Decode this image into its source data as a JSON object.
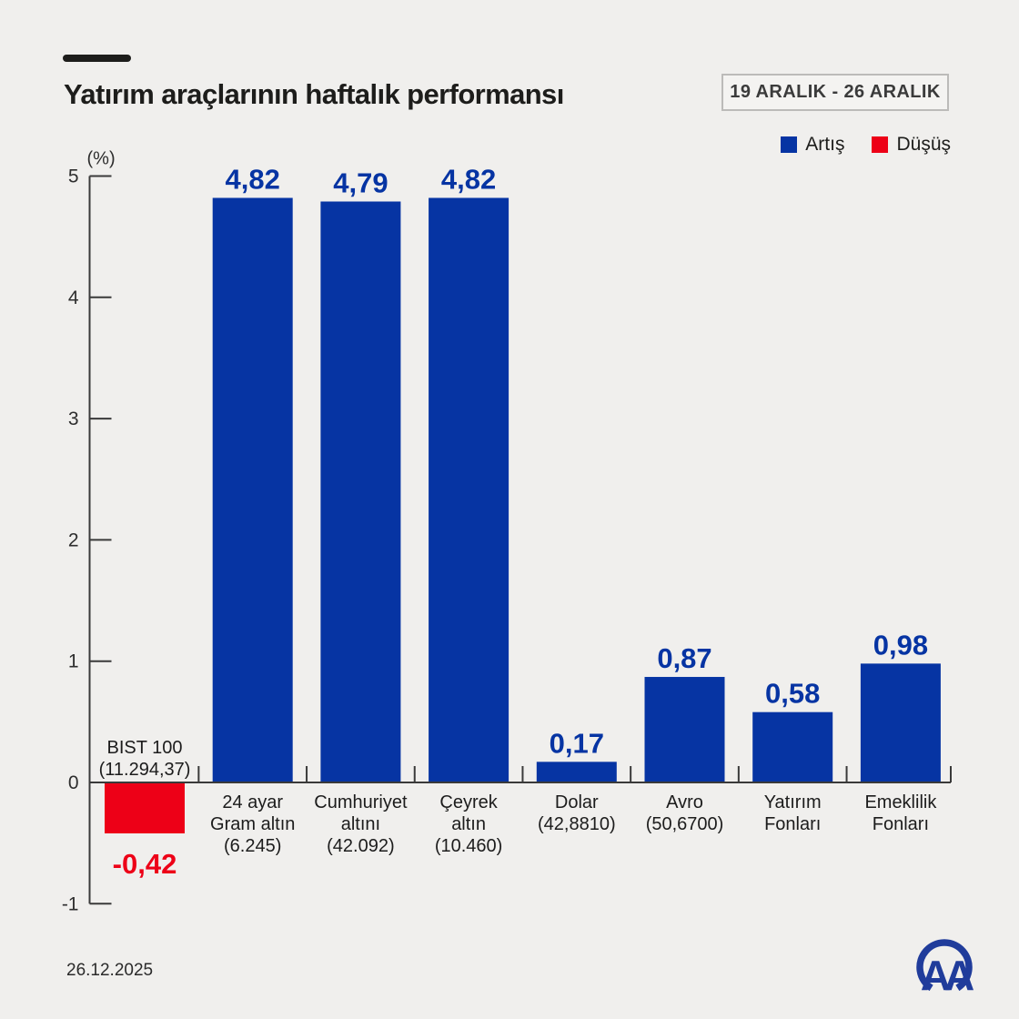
{
  "header": {
    "title": "Yatırım araçlarının haftalık performansı",
    "date_range": "19 ARALIK - 26 ARALIK"
  },
  "legend": {
    "increase": "Artış",
    "decrease": "Düşüş"
  },
  "footer": {
    "date": "26.12.2025",
    "logo_text": "AA"
  },
  "colors": {
    "increase": "#0634A3",
    "decrease": "#ED0017",
    "background": "#F0EFED",
    "axis": "#3A3A3A",
    "text_dark": "#1D1D1B",
    "tick_text": "#2E2E2E",
    "logo_blue": "#203C9B"
  },
  "chart_data": {
    "type": "bar",
    "title": "Yatırım araçlarının haftalık performansı",
    "unit_label": "(%)",
    "ylabel": "(%)",
    "ylim": [
      -1,
      5
    ],
    "y_ticks": [
      5,
      4,
      3,
      2,
      1,
      0,
      -1
    ],
    "grid": false,
    "legend_position": "top-right",
    "categories": [
      {
        "id": "bist-100",
        "label_lines": [
          "BIST 100",
          "(11.294,37)"
        ],
        "value": -0.42,
        "value_label": "-0,42",
        "direction": "decrease"
      },
      {
        "id": "gram-altin",
        "label_lines": [
          "24 ayar",
          "Gram altın",
          "(6.245)"
        ],
        "value": 4.82,
        "value_label": "4,82",
        "direction": "increase"
      },
      {
        "id": "cumhuriyet-altini",
        "label_lines": [
          "Cumhuriyet",
          "altını",
          "(42.092)"
        ],
        "value": 4.79,
        "value_label": "4,79",
        "direction": "increase"
      },
      {
        "id": "ceyrek-altin",
        "label_lines": [
          "Çeyrek",
          "altın",
          "(10.460)"
        ],
        "value": 4.82,
        "value_label": "4,82",
        "direction": "increase"
      },
      {
        "id": "dolar",
        "label_lines": [
          "Dolar",
          "(42,8810)"
        ],
        "value": 0.17,
        "value_label": "0,17",
        "direction": "increase"
      },
      {
        "id": "avro",
        "label_lines": [
          "Avro",
          "(50,6700)"
        ],
        "value": 0.87,
        "value_label": "0,87",
        "direction": "increase"
      },
      {
        "id": "yatirim-fonlari",
        "label_lines": [
          "Yatırım",
          "Fonları"
        ],
        "value": 0.58,
        "value_label": "0,58",
        "direction": "increase"
      },
      {
        "id": "emeklilik-fonlari",
        "label_lines": [
          "Emeklilik",
          "Fonları"
        ],
        "value": 0.98,
        "value_label": "0,98",
        "direction": "increase"
      }
    ]
  }
}
